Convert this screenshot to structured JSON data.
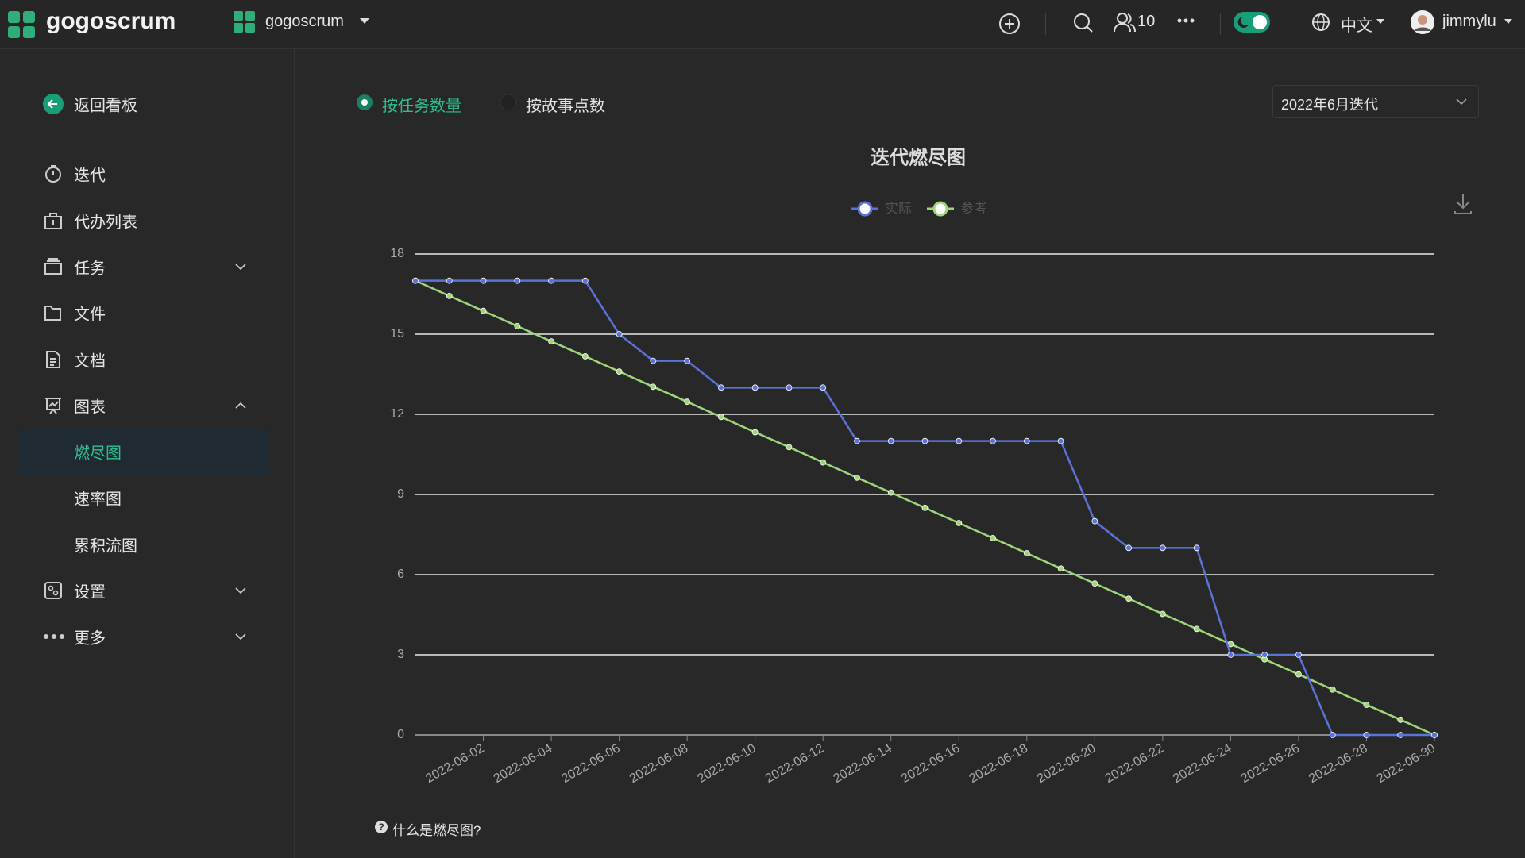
{
  "header": {
    "logo": "gogoscrum",
    "project": "gogoscrum",
    "members": "10",
    "language": "中文",
    "user": "jimmylu"
  },
  "sidebar": {
    "back": "返回看板",
    "items": [
      "迭代",
      "代办列表",
      "任务",
      "文件",
      "文档",
      "图表"
    ],
    "chart_items": [
      "燃尽图",
      "速率图",
      "累积流图"
    ],
    "more_items": [
      "设置",
      "更多"
    ]
  },
  "toolbar": {
    "radio_options": [
      "按任务数量",
      "按故事点数"
    ],
    "sprint": "2022年6月迭代"
  },
  "chart_data": {
    "type": "line",
    "title": "迭代燃尽图",
    "categories": [
      null,
      null,
      "2022-06-02",
      null,
      "2022-06-04",
      null,
      "2022-06-06",
      null,
      "2022-06-08",
      null,
      "2022-06-10",
      null,
      "2022-06-12",
      null,
      "2022-06-14",
      null,
      "2022-06-16",
      null,
      "2022-06-18",
      null,
      "2022-06-20",
      null,
      "2022-06-22",
      null,
      "2022-06-24",
      null,
      "2022-06-26",
      null,
      "2022-06-28",
      null,
      "2022-06-30"
    ],
    "series": [
      {
        "name": "实际",
        "color": "#5b73d9",
        "values": [
          17,
          17,
          17,
          17,
          17,
          17,
          15,
          14,
          14,
          13,
          13,
          13,
          13,
          11,
          11,
          11,
          11,
          11,
          11,
          11,
          8,
          7,
          7,
          7,
          3,
          3,
          3,
          0,
          0,
          0,
          0
        ]
      },
      {
        "name": "参考",
        "color": "#9fd67a",
        "values": [
          17,
          16.43,
          15.87,
          15.3,
          14.73,
          14.17,
          13.6,
          13.03,
          12.47,
          11.9,
          11.33,
          10.77,
          10.2,
          9.63,
          9.07,
          8.5,
          7.93,
          7.37,
          6.8,
          6.23,
          5.67,
          5.1,
          4.53,
          3.97,
          3.4,
          2.83,
          2.27,
          1.7,
          1.13,
          0.57,
          0
        ]
      }
    ],
    "ylim": [
      0,
      18
    ],
    "yticks": [
      0,
      3,
      6,
      9,
      12,
      15,
      18
    ],
    "grid": true
  },
  "footer": {
    "help": "什么是燃尽图?"
  }
}
